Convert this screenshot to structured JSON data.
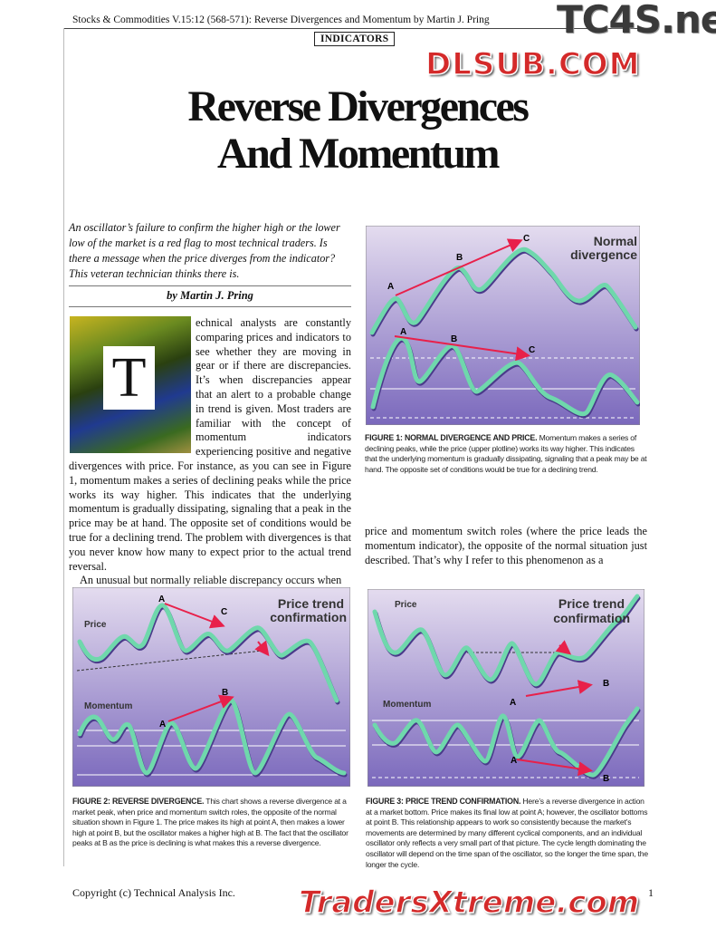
{
  "header": {
    "running_head": "Stocks & Commodities V.15:12 (568-571): Reverse Divergences and Momentum by Martin J. Pring",
    "section": "INDICATORS"
  },
  "article": {
    "title_line1": "Reverse Divergences",
    "title_line2": "And Momentum",
    "deck": "An oscillator’s failure to confirm the higher high or the lower low of the market is a red flag to most technical traders. Is there a message when the price diverges from the indicator? This veteran technician thinks there is.",
    "byline": "by Martin J. Pring",
    "drop_cap": "T",
    "para1_wrap": "echnical analysts are constantly comparing prices and indicators to see whether they are moving in gear or if there are discrepancies. It’s when discrepancies appear that an alert to a probable change in trend is given. Most traders are familiar with the concept of momentum indicators experiencing positive and negative divergences",
    "para1_rest": "with price. For instance, as you can see in Figure 1, momentum makes a series of declining peaks while the price works its way higher. This indicates that the underlying momentum is gradually dissipating, signaling that a peak in the price may be at hand. The opposite set of conditions would be true for a declining trend. The problem with divergences is that you never know how many to expect prior to the actual trend reversal.",
    "para2": "An unusual but normally reliable discrepancy occurs when",
    "para3": "price and momentum switch roles (where the price leads the momentum indicator), the opposite of the normal situation just described. That’s why I refer to this phenomenon as a"
  },
  "figures": [
    {
      "title": "Normal divergence",
      "title_l1": "Normal",
      "title_l2": "divergence",
      "points_upper": [
        "A",
        "B",
        "C"
      ],
      "points_lower": [
        "A",
        "B",
        "C"
      ],
      "caption_head": "FIGURE 1: NORMAL DIVERGENCE AND PRICE.",
      "caption": "Momentum makes a series of declining peaks, while the price (upper plotline) works its way higher. This indicates that the underlying momentum is gradually dissipating, signaling that a peak may be at hand. The opposite set of conditions would be true for a declining trend."
    },
    {
      "title_l1": "Price trend",
      "title_l2": "confirmation",
      "label_price": "Price",
      "label_momentum": "Momentum",
      "points_price": [
        "A",
        "C"
      ],
      "points_momentum": [
        "A",
        "B"
      ],
      "caption_head": "FIGURE 2: REVERSE DIVERGENCE.",
      "caption": "This chart shows a reverse divergence at a market peak, when price and momentum switch roles, the opposite of the normal situation shown in Figure 1. The price makes its high at point A, then makes a lower high at point B, but the oscillator makes a higher high at B. The fact that the oscillator peaks at B as the price is declining is what makes this a reverse divergence."
    },
    {
      "title_l1": "Price trend",
      "title_l2": "confirmation",
      "label_price": "Price",
      "label_momentum": "Momentum",
      "points_price": [
        "A",
        "B"
      ],
      "points_momentum": [
        "A",
        "B"
      ],
      "caption_head": "FIGURE 3: PRICE TREND CONFIRMATION.",
      "caption": "Here’s a reverse divergence in action at a market bottom. Price makes its final low at point A; however, the oscillator bottoms at point B. This relationship appears to work so consistently because the market’s movements are determined by many different cyclical components, and an individual oscillator only reflects a very small part of that picture. The cycle length dominating the oscillator will depend on the time span of the oscillator, so the longer the time span, the longer the cycle."
    }
  ],
  "footer": {
    "copyright": "Copyright (c) Technical Analysis Inc.",
    "page": "1"
  },
  "watermarks": {
    "top": "TC4S.net",
    "middle": "DLSUB.COM",
    "bottom": "TradersXtreme.com"
  },
  "colors": {
    "curve": "#6fd8ac",
    "arrow": "#e8204a",
    "chart_bg_top": "#e4dcef",
    "chart_bg_bottom": "#7a68bc"
  }
}
